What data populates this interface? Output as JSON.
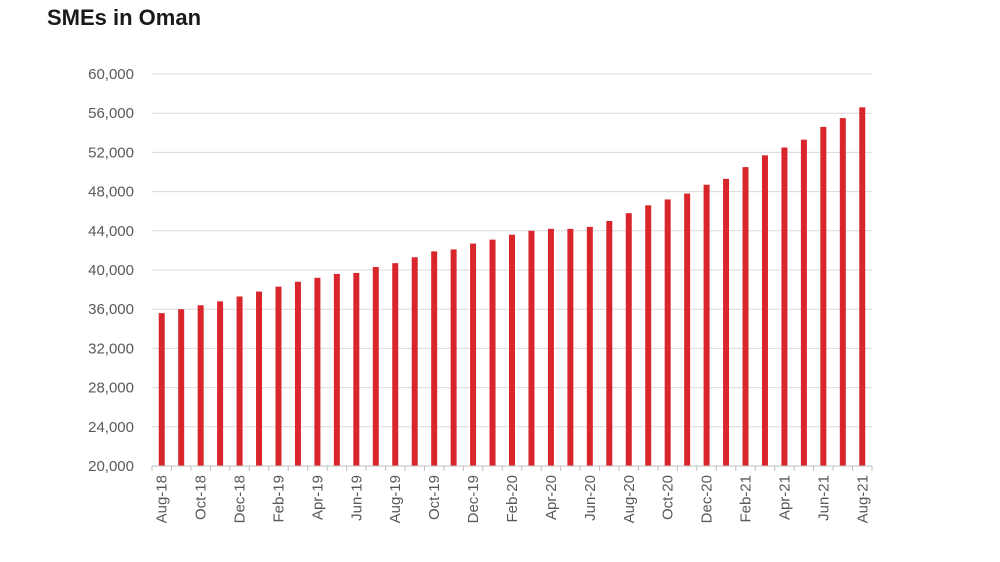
{
  "chart_data": {
    "type": "bar",
    "title": "SMEs in Oman",
    "xlabel": "",
    "ylabel": "",
    "ylim": [
      20000,
      60000
    ],
    "yticks": [
      20000,
      24000,
      28000,
      32000,
      36000,
      40000,
      44000,
      48000,
      52000,
      56000,
      60000
    ],
    "ytick_labels": [
      "20,000",
      "24,000",
      "28,000",
      "32,000",
      "36,000",
      "40,000",
      "44,000",
      "48,000",
      "52,000",
      "56,000",
      "60,000"
    ],
    "xtick_labels": [
      "Aug-18",
      "Oct-18",
      "Dec-18",
      "Feb-19",
      "Apr-19",
      "Jun-19",
      "Aug-19",
      "Oct-19",
      "Dec-19",
      "Feb-20",
      "Apr-20",
      "Jun-20",
      "Aug-20",
      "Oct-20",
      "Dec-20",
      "Feb-21",
      "Apr-21",
      "Jun-21",
      "Aug-21"
    ],
    "categories": [
      "Aug-18",
      "Sep-18",
      "Oct-18",
      "Nov-18",
      "Dec-18",
      "Jan-19",
      "Feb-19",
      "Mar-19",
      "Apr-19",
      "May-19",
      "Jun-19",
      "Jul-19",
      "Aug-19",
      "Sep-19",
      "Oct-19",
      "Nov-19",
      "Dec-19",
      "Jan-20",
      "Feb-20",
      "Mar-20",
      "Apr-20",
      "May-20",
      "Jun-20",
      "Jul-20",
      "Aug-20",
      "Sep-20",
      "Oct-20",
      "Nov-20",
      "Dec-20",
      "Jan-21",
      "Feb-21",
      "Mar-21",
      "Apr-21",
      "May-21",
      "Jun-21",
      "Jul-21",
      "Aug-21"
    ],
    "values": [
      35600,
      36000,
      36400,
      36800,
      37300,
      37800,
      38300,
      38800,
      39200,
      39600,
      39700,
      40300,
      40700,
      41300,
      41900,
      42100,
      42700,
      43100,
      43600,
      44000,
      44200,
      44200,
      44400,
      45000,
      45800,
      46600,
      47200,
      47800,
      48700,
      49300,
      50500,
      51700,
      52500,
      53300,
      54600,
      55500,
      56600
    ],
    "grid": true,
    "legend": "none",
    "bar_color": "#d9262c",
    "grid_color": "#d9d9d9",
    "axis_color": "#bfbfbf"
  }
}
